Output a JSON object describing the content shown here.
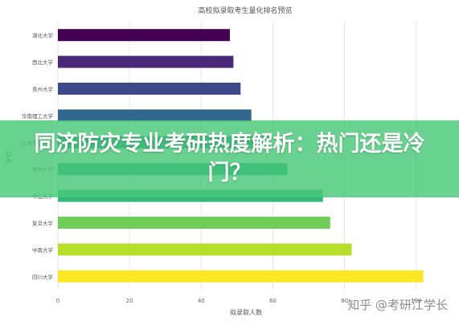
{
  "chart_data": {
    "type": "bar",
    "orientation": "horizontal",
    "title": "高校拟录取考生量化排名预览",
    "xlabel": "拟录取人数",
    "ylabel": "学校",
    "xlim": [
      0,
      105
    ],
    "xticks": [
      0,
      20,
      40,
      60,
      80,
      100
    ],
    "grid": true,
    "categories": [
      "湖北大学",
      "西北大学",
      "贵州大学",
      "华南理工大学",
      "上海交通大学",
      "南京大学",
      "中山大学",
      "复旦大学",
      "中南大学",
      "四川大学"
    ],
    "values": [
      48,
      49,
      51,
      54,
      59,
      64,
      74,
      76,
      82,
      102
    ],
    "colors": [
      "#440154",
      "#482878",
      "#3e4989",
      "#31688e",
      "#26828e",
      "#1f9e89",
      "#35b779",
      "#6ece58",
      "#b5de2b",
      "#fde725"
    ]
  },
  "banner": {
    "text": "同济防灾专业考研热度解析：热门还是冷门？"
  },
  "watermark": "知乎 @考研江学长"
}
